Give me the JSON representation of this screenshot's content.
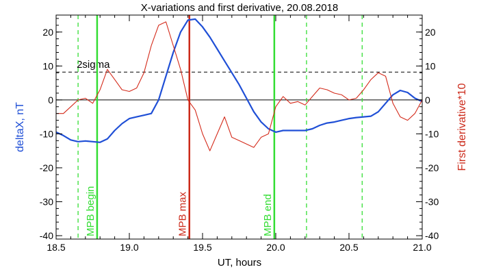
{
  "chart_data": {
    "type": "line",
    "title": "X-variations and first derivative, 20.08.2018",
    "xlabel": "UT, hours",
    "ylabel_left": "deltaX, nT",
    "ylabel_right": "First derivative*10",
    "xlim": [
      18.5,
      21.0
    ],
    "ylim": [
      -41,
      25
    ],
    "x_ticks": [
      18.5,
      19.0,
      19.5,
      20.0,
      20.5,
      21.0
    ],
    "x_tick_labels": [
      "18.5",
      "19.0",
      "19.5",
      "20.0",
      "20.5",
      "21.0"
    ],
    "y_ticks": [
      20,
      10,
      0,
      -10,
      -20,
      -30,
      -40
    ],
    "y_tick_labels": [
      "20",
      "10",
      "0",
      "-10",
      "-20",
      "-30",
      "-40"
    ],
    "colors": {
      "deltaX": "#1f4fd6",
      "derivative": "#d42a1a",
      "mpb_boundary": "#33dd33",
      "mpb_max": "#cc2a1a",
      "axis_label_left": "#1f4fd6",
      "axis_label_right": "#cc2a1a"
    },
    "series": [
      {
        "name": "deltaX",
        "color": "#1f4fd6",
        "x": [
          18.5,
          18.55,
          18.6,
          18.65,
          18.7,
          18.75,
          18.8,
          18.85,
          18.9,
          18.95,
          19.0,
          19.05,
          19.1,
          19.15,
          19.2,
          19.25,
          19.3,
          19.35,
          19.4,
          19.45,
          19.5,
          19.55,
          19.6,
          19.65,
          19.7,
          19.75,
          19.8,
          19.85,
          19.9,
          19.95,
          20.0,
          20.05,
          20.1,
          20.15,
          20.2,
          20.25,
          20.3,
          20.35,
          20.4,
          20.45,
          20.5,
          20.55,
          20.6,
          20.65,
          20.7,
          20.75,
          20.8,
          20.85,
          20.9,
          20.95,
          21.0
        ],
        "values": [
          -9.5,
          -10.5,
          -11.8,
          -12.3,
          -12.1,
          -12.3,
          -12.5,
          -11.5,
          -9,
          -7,
          -5.5,
          -5,
          -4.5,
          -4,
          0,
          7,
          14,
          20,
          23.5,
          23.8,
          21.5,
          18.5,
          15,
          11.5,
          8,
          4.5,
          0.5,
          -3.5,
          -6.5,
          -8.5,
          -9.5,
          -9,
          -9,
          -9,
          -9,
          -8.5,
          -7.5,
          -6.8,
          -6.5,
          -6,
          -5.5,
          -5.2,
          -5,
          -4.8,
          -3.5,
          -1,
          1.5,
          2.8,
          2.2,
          0.5,
          -0.5
        ]
      },
      {
        "name": "First derivative*10",
        "color": "#d42a1a",
        "x": [
          18.5,
          18.55,
          18.6,
          18.65,
          18.7,
          18.75,
          18.8,
          18.85,
          18.9,
          18.95,
          19.0,
          19.05,
          19.1,
          19.15,
          19.2,
          19.25,
          19.3,
          19.35,
          19.4,
          19.45,
          19.5,
          19.55,
          19.6,
          19.65,
          19.7,
          19.75,
          19.8,
          19.85,
          19.9,
          19.95,
          20.0,
          20.05,
          20.1,
          20.15,
          20.2,
          20.25,
          20.3,
          20.35,
          20.4,
          20.45,
          20.5,
          20.55,
          20.6,
          20.65,
          20.7,
          20.75,
          20.8,
          20.85,
          20.9,
          20.95,
          21.0
        ],
        "values": [
          -4,
          -4,
          -2,
          0,
          0.5,
          -1,
          3,
          9,
          6,
          3,
          2.5,
          3.5,
          8,
          16,
          22,
          23,
          16,
          9,
          0,
          -3,
          -10,
          -15,
          -10,
          -5,
          -11,
          -12,
          -13,
          -14,
          -11,
          -10,
          -2,
          1,
          -1,
          -0.5,
          -1.5,
          1,
          3.5,
          3,
          2,
          1.5,
          0,
          0.5,
          3,
          6,
          8,
          7,
          -1,
          -5,
          -6,
          -4,
          0
        ]
      }
    ],
    "threshold": {
      "label": "2sigma",
      "value": 8.2,
      "style": "dashed"
    },
    "zero_line": 0,
    "vertical_lines": [
      {
        "x": 18.65,
        "style": "dashed",
        "color": "#33dd33",
        "label": ""
      },
      {
        "x": 18.78,
        "style": "solid",
        "color": "#33dd33",
        "label": "MPB begin"
      },
      {
        "x": 19.41,
        "style": "solid",
        "color": "#cc2a1a",
        "label": "MPB max"
      },
      {
        "x": 19.99,
        "style": "solid",
        "color": "#33dd33",
        "label": "MPB end"
      },
      {
        "x": 20.21,
        "style": "dashed",
        "color": "#33dd33",
        "label": ""
      },
      {
        "x": 20.59,
        "style": "dashed",
        "color": "#33dd33",
        "label": ""
      }
    ],
    "grid": false,
    "legend": "none"
  }
}
